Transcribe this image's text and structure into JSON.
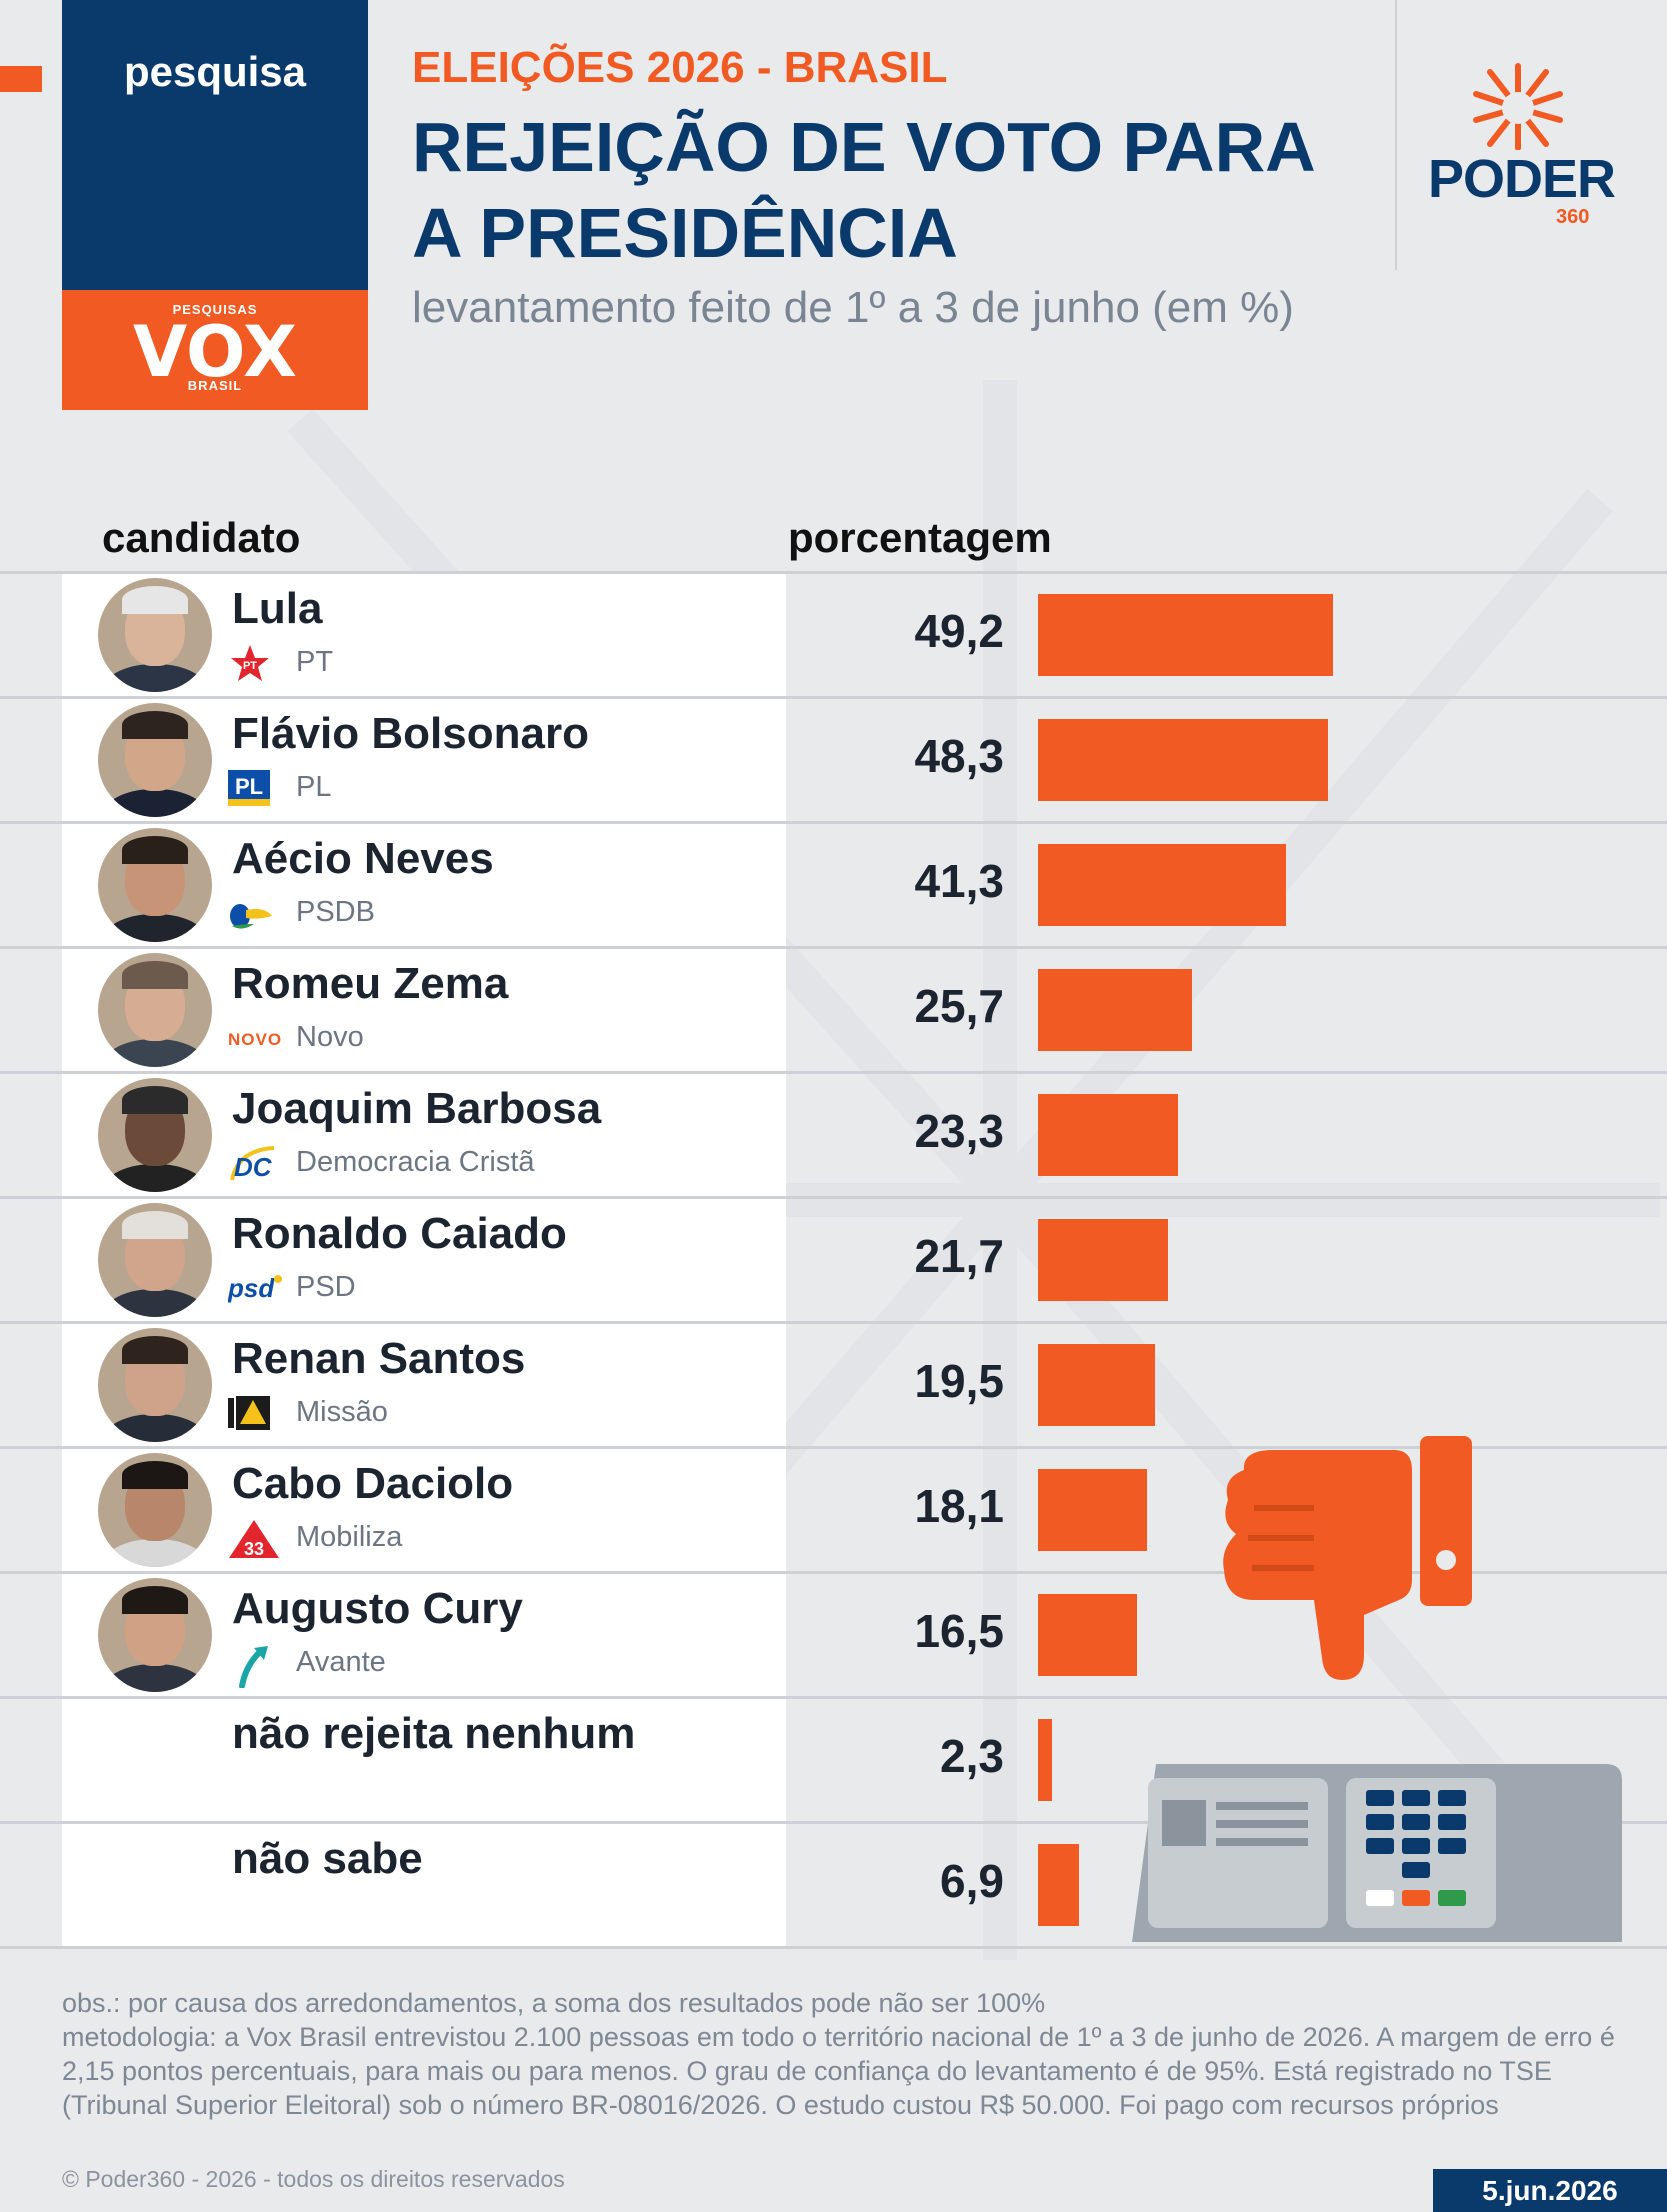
{
  "badge": {
    "label": "pesquisa",
    "logo_top": "PESQUISAS",
    "logo_main": "VOX",
    "logo_bottom": "BRASIL"
  },
  "header": {
    "kicker": "ELEIÇÕES 2026 - BRASIL",
    "title_line1": "REJEIÇÃO DE VOTO PARA",
    "title_line2": "A PRESIDÊNCIA",
    "subtitle": "levantamento feito de 1º a 3 de junho (em %)"
  },
  "brand": {
    "name": "PODER",
    "number": "360"
  },
  "columns": {
    "candidate": "candidato",
    "percent": "porcentagem"
  },
  "colors": {
    "accent": "#f15a22",
    "navy": "#0a3a6b",
    "row_bg": "#ffffff",
    "background": "#e9eaec"
  },
  "chart_data": {
    "type": "bar",
    "orientation": "horizontal",
    "categories": [
      "Lula",
      "Flávio Bolsonaro",
      "Aécio Neves",
      "Romeu Zema",
      "Joaquim Barbosa",
      "Ronaldo Caiado",
      "Renan Santos",
      "Cabo Daciolo",
      "Augusto Cury",
      "não rejeita nenhum",
      "não sabe"
    ],
    "values": [
      49.2,
      48.3,
      41.3,
      25.7,
      23.3,
      21.7,
      19.5,
      18.1,
      16.5,
      2.3,
      6.9
    ],
    "value_labels": [
      "49,2",
      "48,3",
      "41,3",
      "25,7",
      "23,3",
      "21,7",
      "19,5",
      "18,1",
      "16,5",
      "2,3",
      "6,9"
    ],
    "xlim": [
      0,
      100
    ]
  },
  "rows": [
    {
      "name": "Lula",
      "party": "PT",
      "party_icon": "pt-star-icon",
      "has_photo": true
    },
    {
      "name": "Flávio Bolsonaro",
      "party": "PL",
      "party_icon": "pl-logo-icon",
      "has_photo": true
    },
    {
      "name": "Aécio Neves",
      "party": "PSDB",
      "party_icon": "psdb-toucan-icon",
      "has_photo": true
    },
    {
      "name": "Romeu Zema",
      "party": "Novo",
      "party_icon": "novo-logo-icon",
      "has_photo": true
    },
    {
      "name": "Joaquim Barbosa",
      "party": "Democracia Cristã",
      "party_icon": "dc-logo-icon",
      "has_photo": true
    },
    {
      "name": "Ronaldo Caiado",
      "party": "PSD",
      "party_icon": "psd-logo-icon",
      "has_photo": true
    },
    {
      "name": "Renan Santos",
      "party": "Missão",
      "party_icon": "missao-logo-icon",
      "has_photo": true
    },
    {
      "name": "Cabo Daciolo",
      "party": "Mobiliza",
      "party_icon": "mobiliza-33-icon",
      "has_photo": true
    },
    {
      "name": "Augusto Cury",
      "party": "Avante",
      "party_icon": "avante-arrow-icon",
      "has_photo": true
    },
    {
      "name": "não rejeita nenhum",
      "party": "",
      "party_icon": "",
      "has_photo": false
    },
    {
      "name": "não sabe",
      "party": "",
      "party_icon": "",
      "has_photo": false
    }
  ],
  "party_logo_text": {
    "pt": "PT",
    "pl": "PL",
    "novo": "NOVO",
    "dc": "DC",
    "psd": "psd",
    "mobiliza": "33"
  },
  "icons": [
    "thumbs-down-icon",
    "ballot-box-icon"
  ],
  "notes": {
    "line1": "obs.: por causa dos arredondamentos, a soma dos resultados pode não ser 100%",
    "line2": "metodologia: a Vox Brasil entrevistou 2.100 pessoas em todo o território nacional de 1º a 3 de junho de 2026. A margem de erro é 2,15 pontos percentuais, para mais ou para menos. O grau de confiança do levantamento é de 95%. Está registrado no TSE (Tribunal Superior Eleitoral) sob o número BR-08016/2026. O estudo custou R$ 50.000. Foi pago com recursos próprios"
  },
  "footer": {
    "copyright": "© Poder360 - 2026 - todos os direitos reservados",
    "date": "5.jun.2026"
  }
}
